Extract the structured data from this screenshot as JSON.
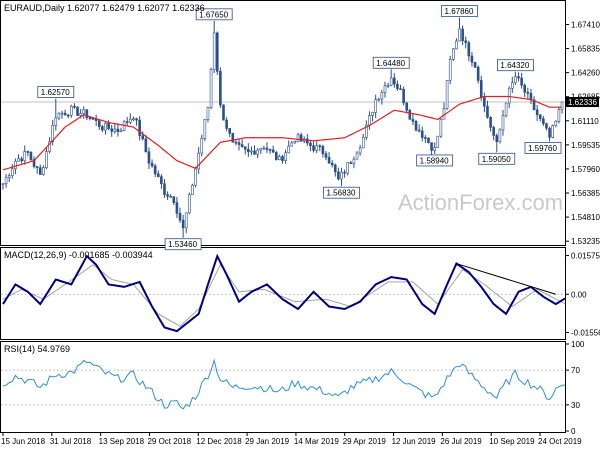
{
  "chart_data": [
    {
      "type": "candlestick",
      "title": "EURAUD,Daily  1.62077 1.62479 1.62077 1.62336",
      "price_tag": "1.62336",
      "watermark": "ActionForex.com",
      "ylim": [
        1.5305,
        1.6875
      ],
      "y_ticks": [
        "1.67410",
        "1.65835",
        "1.64260",
        "1.62685",
        "1.61110",
        "1.59535",
        "1.57960",
        "1.56385",
        "1.54810",
        "1.53235"
      ],
      "x_ticks": [
        "15 Jun 2018",
        "31 Jul 2018",
        "13 Sep 2018",
        "29 Oct 2018",
        "12 Dec 2018",
        "29 Jan 2019",
        "14 Mar 2019",
        "29 Apr 2019",
        "12 Jun 2019",
        "26 Jul 2019",
        "10 Sep 2019",
        "24 Oct 2019"
      ],
      "annotations": [
        {
          "label": "1.62570",
          "value": 1.6257,
          "bar": 17
        },
        {
          "label": "1.53460",
          "value": 1.5346,
          "bar": 58
        },
        {
          "label": "1.67650",
          "value": 1.6765,
          "bar": 68
        },
        {
          "label": "1.56830",
          "value": 1.5683,
          "bar": 109
        },
        {
          "label": "1.64480",
          "value": 1.6448,
          "bar": 125
        },
        {
          "label": "1.58940",
          "value": 1.5894,
          "bar": 139
        },
        {
          "label": "1.67860",
          "value": 1.6786,
          "bar": 147
        },
        {
          "label": "1.59050",
          "value": 1.5905,
          "bar": 159
        },
        {
          "label": "1.64320",
          "value": 1.6432,
          "bar": 165
        },
        {
          "label": "1.59760",
          "value": 1.5976,
          "bar": 176
        }
      ],
      "close_anchors": [
        [
          0,
          1.57
        ],
        [
          4,
          1.585
        ],
        [
          8,
          1.59
        ],
        [
          12,
          1.575
        ],
        [
          17,
          1.615
        ],
        [
          22,
          1.618
        ],
        [
          27,
          1.615
        ],
        [
          32,
          1.607
        ],
        [
          37,
          1.605
        ],
        [
          42,
          1.615
        ],
        [
          47,
          1.585
        ],
        [
          52,
          1.565
        ],
        [
          55,
          1.56
        ],
        [
          58,
          1.54
        ],
        [
          62,
          1.58
        ],
        [
          66,
          1.62
        ],
        [
          68,
          1.67
        ],
        [
          70,
          1.62
        ],
        [
          74,
          1.595
        ],
        [
          79,
          1.59
        ],
        [
          84,
          1.595
        ],
        [
          89,
          1.585
        ],
        [
          94,
          1.6
        ],
        [
          99,
          1.595
        ],
        [
          104,
          1.59
        ],
        [
          108,
          1.572
        ],
        [
          112,
          1.585
        ],
        [
          116,
          1.6
        ],
        [
          120,
          1.625
        ],
        [
          125,
          1.64
        ],
        [
          128,
          1.63
        ],
        [
          132,
          1.61
        ],
        [
          136,
          1.6
        ],
        [
          139,
          1.592
        ],
        [
          142,
          1.62
        ],
        [
          144,
          1.65
        ],
        [
          147,
          1.672
        ],
        [
          149,
          1.66
        ],
        [
          152,
          1.648
        ],
        [
          155,
          1.62
        ],
        [
          159,
          1.595
        ],
        [
          162,
          1.625
        ],
        [
          165,
          1.64
        ],
        [
          168,
          1.63
        ],
        [
          172,
          1.615
        ],
        [
          176,
          1.6
        ],
        [
          178,
          1.61
        ],
        [
          180,
          1.623
        ]
      ],
      "ma_anchors": [
        [
          0,
          1.579
        ],
        [
          10,
          1.585
        ],
        [
          20,
          1.607
        ],
        [
          26,
          1.615
        ],
        [
          34,
          1.61
        ],
        [
          42,
          1.607
        ],
        [
          50,
          1.595
        ],
        [
          56,
          1.585
        ],
        [
          62,
          1.58
        ],
        [
          70,
          1.597
        ],
        [
          78,
          1.6
        ],
        [
          90,
          1.6
        ],
        [
          100,
          1.598
        ],
        [
          110,
          1.6
        ],
        [
          118,
          1.608
        ],
        [
          126,
          1.618
        ],
        [
          134,
          1.615
        ],
        [
          140,
          1.612
        ],
        [
          147,
          1.622
        ],
        [
          155,
          1.627
        ],
        [
          163,
          1.627
        ],
        [
          170,
          1.625
        ],
        [
          176,
          1.62
        ],
        [
          180,
          1.62
        ]
      ],
      "n_bars": 181
    },
    {
      "type": "line",
      "title": "MACD(12,26,9) -0.001685 -0.003944",
      "ylim": [
        -0.0178,
        0.0172
      ],
      "y_ticks": [
        "0.01575",
        "0.00",
        "-0.015568"
      ],
      "macd_anchors": [
        [
          0,
          -0.004
        ],
        [
          4,
          0.004
        ],
        [
          8,
          0.001
        ],
        [
          12,
          -0.004
        ],
        [
          17,
          0.006
        ],
        [
          22,
          0.004
        ],
        [
          27,
          0.0155
        ],
        [
          30,
          0.012
        ],
        [
          34,
          0.004
        ],
        [
          39,
          0.003
        ],
        [
          44,
          0.005
        ],
        [
          48,
          -0.005
        ],
        [
          52,
          -0.0135
        ],
        [
          56,
          -0.015
        ],
        [
          60,
          -0.011
        ],
        [
          63,
          -0.008
        ],
        [
          66,
          0.004
        ],
        [
          69,
          0.0155
        ],
        [
          72,
          0.008
        ],
        [
          76,
          -0.003
        ],
        [
          80,
          0.001
        ],
        [
          85,
          0.004
        ],
        [
          90,
          -0.002
        ],
        [
          95,
          -0.006
        ],
        [
          100,
          0.001
        ],
        [
          105,
          -0.005
        ],
        [
          110,
          -0.006
        ],
        [
          115,
          -0.003
        ],
        [
          120,
          0.004
        ],
        [
          125,
          0.007
        ],
        [
          130,
          0.006
        ],
        [
          135,
          -0.004
        ],
        [
          139,
          -0.008
        ],
        [
          143,
          0.004
        ],
        [
          146,
          0.0125
        ],
        [
          150,
          0.009
        ],
        [
          154,
          0.003
        ],
        [
          158,
          -0.004
        ],
        [
          162,
          -0.008
        ],
        [
          166,
          0.001
        ],
        [
          170,
          0.003
        ],
        [
          174,
          -0.001
        ],
        [
          178,
          -0.004
        ],
        [
          181,
          -0.0017
        ]
      ],
      "signal_anchors": [
        [
          0,
          -0.002
        ],
        [
          6,
          0.002
        ],
        [
          13,
          -0.002
        ],
        [
          20,
          0.004
        ],
        [
          29,
          0.012
        ],
        [
          35,
          0.006
        ],
        [
          42,
          0.004
        ],
        [
          50,
          -0.008
        ],
        [
          57,
          -0.013
        ],
        [
          63,
          -0.006
        ],
        [
          70,
          0.012
        ],
        [
          76,
          0.001
        ],
        [
          84,
          0.002
        ],
        [
          94,
          -0.003
        ],
        [
          104,
          -0.002
        ],
        [
          112,
          -0.005
        ],
        [
          124,
          0.005
        ],
        [
          132,
          0.005
        ],
        [
          140,
          -0.004
        ],
        [
          148,
          0.01
        ],
        [
          155,
          0.004
        ],
        [
          164,
          -0.005
        ],
        [
          172,
          0.002
        ],
        [
          181,
          -0.0039
        ]
      ],
      "trendline": [
        [
          146,
          0.0125
        ],
        [
          178,
          0.0
        ]
      ]
    },
    {
      "type": "line",
      "title": "RSI(14) 54.9769",
      "ylim": [
        0,
        100
      ],
      "y_ticks": [
        "100",
        "70",
        "30",
        "0"
      ],
      "rsi_anchors": [
        [
          0,
          55
        ],
        [
          4,
          63
        ],
        [
          8,
          58
        ],
        [
          12,
          50
        ],
        [
          17,
          65
        ],
        [
          22,
          67
        ],
        [
          27,
          80
        ],
        [
          32,
          68
        ],
        [
          37,
          60
        ],
        [
          42,
          64
        ],
        [
          47,
          48
        ],
        [
          52,
          30
        ],
        [
          56,
          32
        ],
        [
          58,
          25
        ],
        [
          62,
          40
        ],
        [
          66,
          65
        ],
        [
          68,
          80
        ],
        [
          70,
          60
        ],
        [
          74,
          50
        ],
        [
          79,
          52
        ],
        [
          84,
          50
        ],
        [
          89,
          45
        ],
        [
          94,
          55
        ],
        [
          99,
          50
        ],
        [
          104,
          45
        ],
        [
          108,
          38
        ],
        [
          112,
          50
        ],
        [
          116,
          55
        ],
        [
          120,
          60
        ],
        [
          125,
          68
        ],
        [
          128,
          62
        ],
        [
          132,
          50
        ],
        [
          136,
          42
        ],
        [
          139,
          38
        ],
        [
          142,
          55
        ],
        [
          144,
          65
        ],
        [
          147,
          78
        ],
        [
          149,
          70
        ],
        [
          152,
          60
        ],
        [
          155,
          50
        ],
        [
          159,
          38
        ],
        [
          162,
          55
        ],
        [
          165,
          65
        ],
        [
          168,
          58
        ],
        [
          172,
          50
        ],
        [
          176,
          38
        ],
        [
          178,
          48
        ],
        [
          181,
          55
        ]
      ]
    }
  ]
}
